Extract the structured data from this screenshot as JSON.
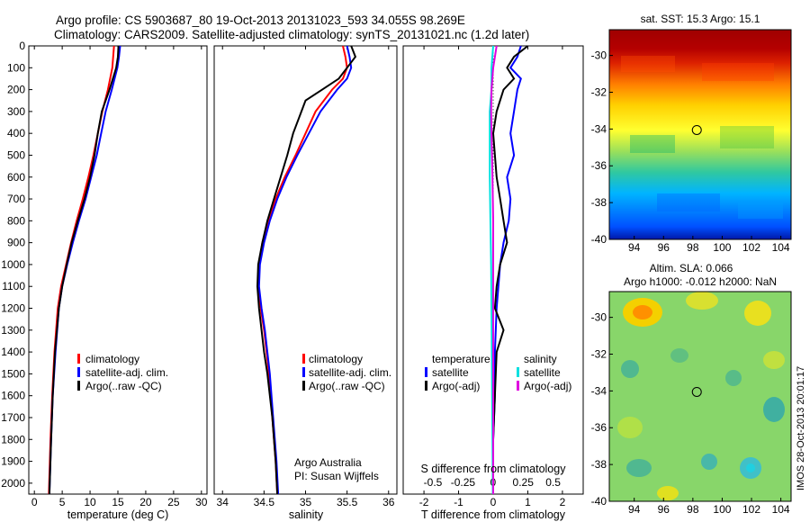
{
  "header": {
    "line1": "Argo profile: CS 5903687_80 19-Oct-2013 20131023_593 34.055S 98.269E",
    "line2": "Climatology: CARS2009. Satellite-adjusted climatology: synTS_20131021.nc (1.2d later)"
  },
  "colors": {
    "clim": "#ff0000",
    "sat": "#0000ff",
    "argo": "#000000",
    "sal_sat": "#00e0e0",
    "sal_argo": "#e000e0"
  },
  "chart_data": [
    {
      "type": "line",
      "id": "temperature",
      "xlabel": "temperature (deg C)",
      "xlim": [
        -1,
        31
      ],
      "xticks": [
        0,
        5,
        10,
        15,
        20,
        25,
        30
      ],
      "ylim": [
        0,
        2050
      ],
      "yticks": [
        0,
        100,
        200,
        300,
        400,
        500,
        600,
        700,
        800,
        900,
        1000,
        1100,
        1200,
        1300,
        1400,
        1500,
        1600,
        1700,
        1800,
        1900,
        2000
      ],
      "legend": [
        "climatology",
        "satellite-adj. clim.",
        "Argo(..raw -QC)"
      ],
      "series": [
        {
          "name": "climatology",
          "color": "#ff0000",
          "depth": [
            0,
            100,
            200,
            300,
            400,
            500,
            600,
            700,
            800,
            900,
            1000,
            1100,
            1200,
            1400,
            1600,
            1800,
            2050
          ],
          "values": [
            14.3,
            14.0,
            13.2,
            12.2,
            11.4,
            10.6,
            9.7,
            8.7,
            7.6,
            6.6,
            5.7,
            4.8,
            4.2,
            3.6,
            3.2,
            2.9,
            2.6
          ]
        },
        {
          "name": "satellite-adj. clim.",
          "color": "#0000ff",
          "depth": [
            0,
            50,
            100,
            200,
            300,
            400,
            500,
            600,
            700,
            800,
            900,
            1000,
            1100,
            1200,
            1400,
            1600,
            1800,
            2050
          ],
          "values": [
            15.4,
            15.2,
            14.9,
            13.9,
            12.8,
            12.0,
            11.2,
            10.2,
            9.2,
            8.0,
            6.9,
            5.9,
            5.0,
            4.4,
            3.8,
            3.3,
            3.0,
            2.7
          ]
        },
        {
          "name": "Argo(..raw -QC)",
          "color": "#000000",
          "depth": [
            0,
            50,
            100,
            200,
            300,
            400,
            500,
            600,
            700,
            800,
            900,
            1000,
            1100,
            1200,
            1400,
            1600,
            1800,
            2050
          ],
          "values": [
            15.1,
            15.0,
            14.7,
            13.5,
            12.1,
            11.4,
            10.8,
            10.0,
            9.0,
            7.8,
            6.7,
            5.8,
            5.0,
            4.4,
            3.7,
            3.3,
            3.0,
            2.7
          ]
        }
      ]
    },
    {
      "type": "line",
      "id": "salinity",
      "xlabel": "salinity",
      "xlim": [
        33.9,
        36.1
      ],
      "xticks": [
        34,
        34.5,
        35,
        35.5,
        36
      ],
      "ylim": [
        0,
        2050
      ],
      "legend": [
        "climatology",
        "satellite-adj. clim.",
        "Argo(..raw -QC)"
      ],
      "series": [
        {
          "name": "climatology",
          "color": "#ff0000",
          "depth": [
            0,
            50,
            100,
            150,
            200,
            300,
            400,
            500,
            600,
            700,
            800,
            900,
            1000,
            1100,
            1200,
            1300,
            1500,
            1700,
            1900,
            2050
          ],
          "values": [
            35.45,
            35.48,
            35.5,
            35.45,
            35.32,
            35.12,
            35.0,
            34.88,
            34.75,
            34.64,
            34.55,
            34.48,
            34.44,
            34.43,
            34.46,
            34.5,
            34.56,
            34.6,
            34.64,
            34.66
          ]
        },
        {
          "name": "satellite-adj. clim.",
          "color": "#0000ff",
          "depth": [
            0,
            50,
            100,
            150,
            200,
            300,
            400,
            500,
            600,
            700,
            800,
            900,
            1000,
            1100,
            1200,
            1300,
            1500,
            1700,
            1900,
            2050
          ],
          "values": [
            35.5,
            35.53,
            35.55,
            35.5,
            35.38,
            35.18,
            35.04,
            34.9,
            34.77,
            34.66,
            34.57,
            34.5,
            34.45,
            34.44,
            34.47,
            34.51,
            34.57,
            34.61,
            34.65,
            34.67
          ]
        },
        {
          "name": "Argo(..raw -QC)",
          "color": "#000000",
          "depth": [
            0,
            50,
            100,
            150,
            200,
            250,
            300,
            400,
            500,
            600,
            700,
            800,
            900,
            1000,
            1100,
            1200,
            1300,
            1400,
            1500,
            1700,
            1900,
            2050
          ],
          "values": [
            35.55,
            35.6,
            35.5,
            35.4,
            35.2,
            35.0,
            34.95,
            34.85,
            34.78,
            34.7,
            34.62,
            34.54,
            34.48,
            34.43,
            34.42,
            34.44,
            34.47,
            34.5,
            34.54,
            34.6,
            34.64,
            34.66
          ]
        }
      ],
      "annotation": [
        "Argo Australia",
        "PI: Susan Wijffels"
      ]
    },
    {
      "type": "line",
      "id": "difference",
      "xlabel": "T difference from climatology",
      "xlabel_top": "S difference from climatology",
      "xlim": [
        -2.6,
        2.6
      ],
      "xticks": [
        -2,
        -1,
        0,
        1,
        2
      ],
      "xticks_top": [
        "-0.5",
        "-0.25",
        "0",
        "0.25",
        "0.5"
      ],
      "ylim": [
        0,
        2050
      ],
      "legend_temperature_title": "temperature",
      "legend_salinity_title": "salinity",
      "legend": [
        "satellite",
        "Argo(-adj)"
      ],
      "series": [
        {
          "name": "T satellite",
          "color": "#0000ff",
          "depth": [
            0,
            50,
            100,
            150,
            200,
            300,
            400,
            500,
            600,
            700,
            800,
            900,
            1000,
            1100,
            1200,
            1400,
            1600,
            1800,
            2050
          ],
          "values": [
            0.8,
            0.7,
            0.5,
            0.8,
            0.7,
            0.6,
            0.5,
            0.6,
            0.4,
            0.5,
            0.45,
            0.3,
            0.2,
            0.15,
            0.1,
            0.05,
            0.05,
            0.0,
            0.0
          ]
        },
        {
          "name": "T Argo(-adj)",
          "color": "#000000",
          "depth": [
            0,
            50,
            100,
            150,
            200,
            300,
            400,
            500,
            600,
            700,
            800,
            900,
            1000,
            1100,
            1200,
            1300,
            1400,
            1600,
            1800,
            2050
          ],
          "values": [
            1.0,
            0.6,
            0.4,
            0.6,
            0.3,
            0.1,
            0.0,
            0.05,
            0.1,
            0.2,
            0.3,
            0.4,
            0.2,
            0.1,
            0.05,
            0.3,
            0.1,
            0.05,
            0.0,
            0.0
          ]
        },
        {
          "name": "S satellite",
          "color": "#00e0e0",
          "depth": [
            0,
            100,
            200,
            300,
            400,
            600,
            800,
            1000,
            1200,
            1400,
            1600,
            1800,
            2050
          ],
          "values": [
            0.0,
            -0.05,
            -0.05,
            -0.1,
            -0.1,
            -0.1,
            -0.08,
            -0.06,
            -0.05,
            -0.04,
            -0.03,
            -0.02,
            -0.01
          ]
        },
        {
          "name": "S Argo(-adj)",
          "color": "#e000e0",
          "depth": [
            0,
            50,
            100,
            200,
            300,
            400,
            600,
            800,
            1000,
            1200,
            1400,
            1600,
            1800,
            2050
          ],
          "values": [
            0.1,
            0.05,
            0.0,
            -0.05,
            -0.06,
            -0.05,
            -0.02,
            0.0,
            0.0,
            0.0,
            0.0,
            0.0,
            0.0,
            0.0
          ]
        }
      ]
    },
    {
      "type": "heatmap",
      "id": "sst-map",
      "title": "sat. SST: 15.3 Argo: 15.1",
      "xlim": [
        92.3,
        104.7
      ],
      "ylim": [
        -40,
        -28.6
      ],
      "xticks": [
        94,
        96,
        98,
        100,
        102,
        104
      ],
      "yticks": [
        -30,
        -32,
        -34,
        -36,
        -38,
        -40
      ],
      "argo_position": [
        98.269,
        -34.055
      ]
    },
    {
      "type": "heatmap",
      "id": "sla-map",
      "title": "Altim. SLA: 0.066",
      "subtitle": "Argo h1000: -0.012 h2000: NaN",
      "xlim": [
        92.3,
        104.7
      ],
      "ylim": [
        -40,
        -28.6
      ],
      "xticks": [
        94,
        96,
        98,
        100,
        102,
        104
      ],
      "yticks": [
        -30,
        -32,
        -34,
        -36,
        -38,
        -40
      ],
      "argo_position": [
        98.269,
        -34.055
      ]
    }
  ],
  "watermark": "IMOS 28-Oct-2013 20:01:17"
}
